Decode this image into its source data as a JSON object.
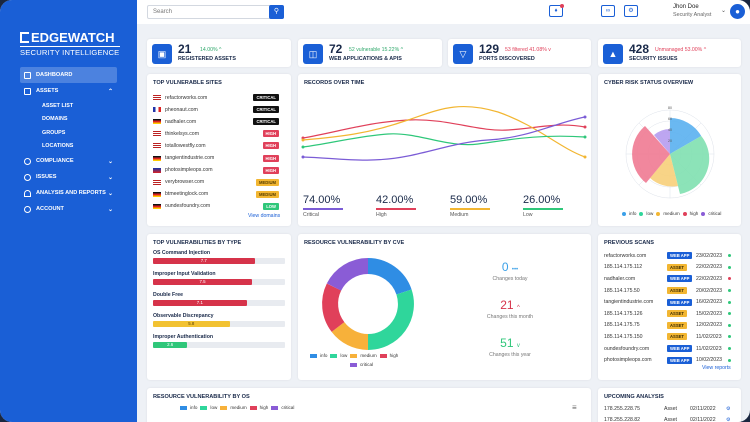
{
  "brand": {
    "line1": "EDGEWATCH",
    "line2": "SECURITY INTELLIGENCE"
  },
  "nav": {
    "dashboard": "DASHBOARD",
    "assets": "ASSETS",
    "asset_list": "ASSET LIST",
    "domains": "DOMAINS",
    "groups": "GROUPS",
    "locations": "LOCATIONS",
    "compliance": "COMPLIANCE",
    "issues": "ISSUES",
    "analysis": "ANALYSIS AND REPORTS",
    "account": "ACCOUNT"
  },
  "topbar": {
    "search_placeholder": "Search",
    "user_name": "Jhon Doe",
    "user_role": "Security Analyst"
  },
  "kpis": [
    {
      "value": "21",
      "delta": "14.00% ^",
      "label": "REGISTERED ASSETS",
      "delta_color": "#2fa86b"
    },
    {
      "value": "72",
      "delta": "52 vulnerable  15.22% ^",
      "label": "WEB APPLICATIONS & APIS",
      "delta_color": "#2fa86b"
    },
    {
      "value": "129",
      "delta": "53 filtered  41.08% v",
      "label": "PORTS DISCOVERED",
      "delta_color": "#e0405a"
    },
    {
      "value": "428",
      "delta": "Unmanaged  53.00% ^",
      "label": "SECURITY ISSUES",
      "delta_color": "#e0405a"
    }
  ],
  "top_sites": {
    "title": "TOP VULNERABLE SITES",
    "items": [
      {
        "site": "refactorworks.com",
        "level": "CRITICAL",
        "color": "#111111"
      },
      {
        "site": "pheonaut.com",
        "level": "CRITICAL",
        "color": "#111111"
      },
      {
        "site": "nadhaler.com",
        "level": "CRITICAL",
        "color": "#111111"
      },
      {
        "site": "thinkelsys.com",
        "level": "HIGH",
        "color": "#e0405a"
      },
      {
        "site": "totallowestfly.com",
        "level": "HIGH",
        "color": "#e0405a"
      },
      {
        "site": "tangientindustrie.com",
        "level": "HIGH",
        "color": "#e0405a"
      },
      {
        "site": "photosimpleops.com",
        "level": "HIGH",
        "color": "#e0405a"
      },
      {
        "site": "verybrowser.com",
        "level": "MEDIUM",
        "color": "#f2b632"
      },
      {
        "site": "btmeetinglock.com",
        "level": "MEDIUM",
        "color": "#f2b632"
      },
      {
        "site": "oundesfoundry.com",
        "level": "LOW",
        "color": "#2fc77a"
      }
    ],
    "link": "View domains"
  },
  "records": {
    "title": "RECORDS OVER TIME",
    "stats": [
      {
        "value": "74.00%",
        "label": "Critical",
        "color": "#7b5cd6"
      },
      {
        "value": "42.00%",
        "label": "High",
        "color": "#e0405a"
      },
      {
        "value": "59.00%",
        "label": "Medium",
        "color": "#f2b632"
      },
      {
        "value": "26.00%",
        "label": "Low",
        "color": "#2fc77a"
      }
    ]
  },
  "cyber": {
    "title": "CYBER RISK STATUS OVERVIEW",
    "ticks": [
      "80",
      "60",
      "40",
      "20"
    ],
    "legend": [
      "info",
      "low",
      "medium",
      "high",
      "critical"
    ]
  },
  "vuln_types": {
    "title": "TOP VULNERABILITIES BY TYPE",
    "items": [
      {
        "name": "OS Command Injection",
        "score": "7.7",
        "pct": 77,
        "color": "#d6334a"
      },
      {
        "name": "Improper Input Validation",
        "score": "7.5",
        "pct": 75,
        "color": "#d6334a"
      },
      {
        "name": "Double Free",
        "score": "7.1",
        "pct": 71,
        "color": "#d6334a"
      },
      {
        "name": "Observable Discrepancy",
        "score": "5.8",
        "pct": 58,
        "color": "#f2c232"
      },
      {
        "name": "Improper Authentication",
        "score": "2.6",
        "pct": 26,
        "color": "#2fc77a"
      }
    ]
  },
  "cve": {
    "title": "RESOURCE VULNERABILITY BY CVE",
    "legend": [
      "info",
      "low",
      "medium",
      "high",
      "critical"
    ],
    "changes": [
      {
        "num": "0",
        "suffix": "•••",
        "text": "Changes today",
        "color": "#3aa0e8"
      },
      {
        "num": "21",
        "suffix": "^",
        "text": "Changes this month",
        "color": "#d6334a"
      },
      {
        "num": "51",
        "suffix": "v",
        "text": "Changes this year",
        "color": "#2fc77a"
      }
    ]
  },
  "scans": {
    "title": "PREVIOUS SCANS",
    "items": [
      {
        "target": "refactorworks.com",
        "tag": "WEB APP",
        "date": "23/02/2023",
        "dot": "#2fc77a"
      },
      {
        "target": "185.114.175.112",
        "tag": "ASSET",
        "date": "22/02/2023",
        "dot": "#2fc77a"
      },
      {
        "target": "nadhaler.com",
        "tag": "WEB APP",
        "date": "22/02/2023",
        "dot": "#e0405a"
      },
      {
        "target": "185.114.175.50",
        "tag": "ASSET",
        "date": "20/02/2023",
        "dot": "#2fc77a"
      },
      {
        "target": "tangientindustrie.com",
        "tag": "WEB APP",
        "date": "16/02/2023",
        "dot": "#2fc77a"
      },
      {
        "target": "185.114.175.126",
        "tag": "ASSET",
        "date": "15/02/2023",
        "dot": "#2fc77a"
      },
      {
        "target": "185.114.175.75",
        "tag": "ASSET",
        "date": "12/02/2023",
        "dot": "#2fc77a"
      },
      {
        "target": "185.114.175.150",
        "tag": "ASSET",
        "date": "11/02/2023",
        "dot": "#2fc77a"
      },
      {
        "target": "oundesfoundry.com",
        "tag": "WEB APP",
        "date": "11/02/2023",
        "dot": "#2fc77a"
      },
      {
        "target": "photosimpleops.com",
        "tag": "WEB APP",
        "date": "10/02/2023",
        "dot": "#2fc77a"
      }
    ],
    "link": "View reports"
  },
  "os": {
    "title": "RESOURCE VULNERABILITY BY OS",
    "legend": [
      "info",
      "low",
      "medium",
      "high",
      "critical"
    ]
  },
  "upcoming": {
    "title": "UPCOMING ANALYSIS",
    "items": [
      {
        "target": "178.255.228.75",
        "type": "Asset",
        "date": "02/11/2022"
      },
      {
        "target": "178.255.228.82",
        "type": "Asset",
        "date": "02/11/2022"
      }
    ]
  },
  "colors": {
    "info": "#3aa0e8",
    "low": "#2fd69b",
    "medium": "#f2b632",
    "high": "#e0405a",
    "critical": "#8a5cd6",
    "brand": "#1a5fd6"
  }
}
